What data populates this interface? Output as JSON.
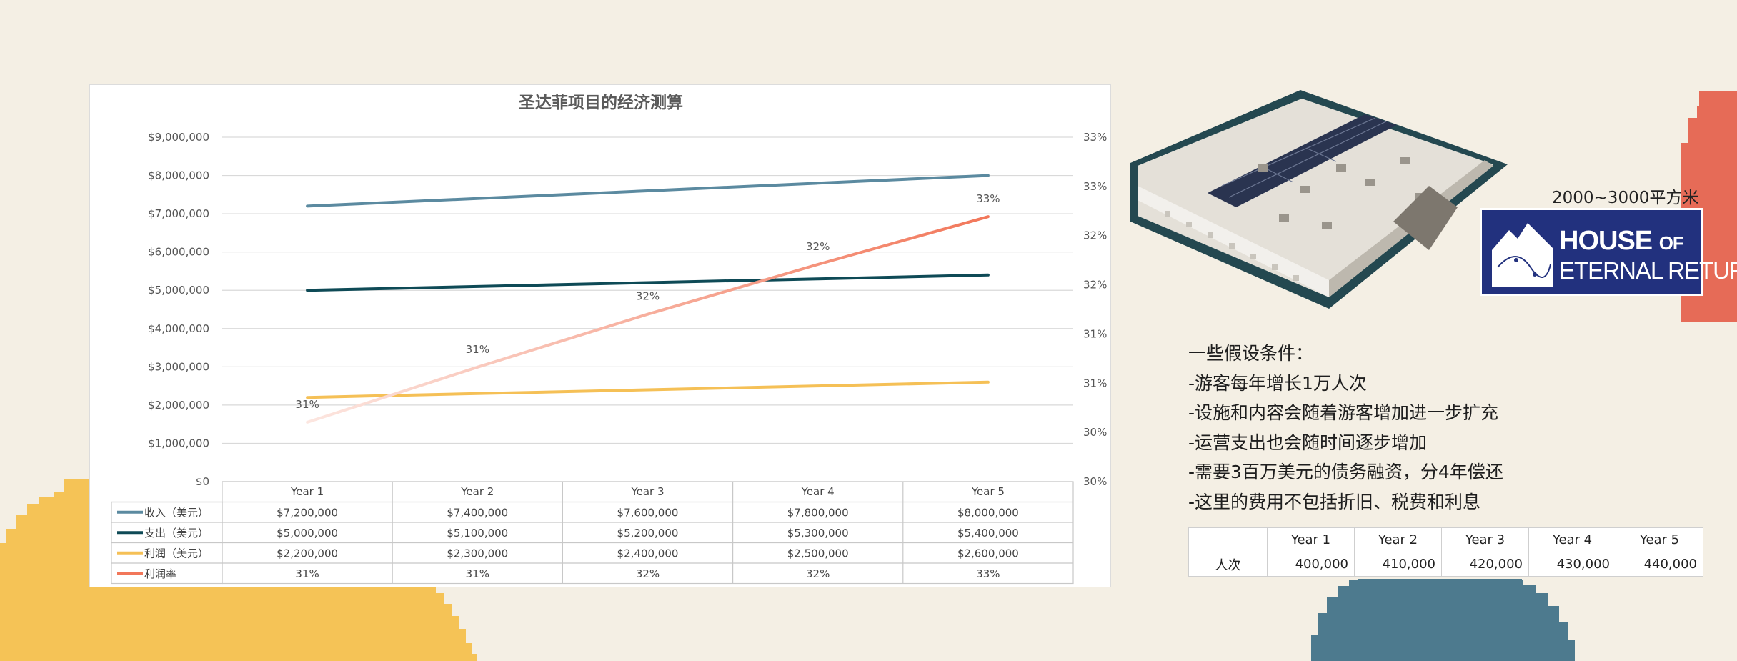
{
  "chart_data": {
    "type": "line",
    "title": "圣达菲项目的经济测算",
    "categories": [
      "Year 1",
      "Year 2",
      "Year 3",
      "Year 4",
      "Year 5"
    ],
    "left_axis": {
      "ylim": [
        0,
        9000000
      ],
      "tick_labels": [
        "$0",
        "$1,000,000",
        "$2,000,000",
        "$3,000,000",
        "$4,000,000",
        "$5,000,000",
        "$6,000,000",
        "$7,000,000",
        "$8,000,000",
        "$9,000,000"
      ]
    },
    "right_axis": {
      "tick_labels": [
        "30%",
        "30%",
        "31%",
        "31%",
        "32%",
        "32%",
        "33%",
        "33%"
      ]
    },
    "series": [
      {
        "name": "收入（美元）",
        "values": [
          7200000,
          7400000,
          7600000,
          7800000,
          8000000
        ],
        "labels": [
          "$7,200,000",
          "$7,400,000",
          "$7,600,000",
          "$7,800,000",
          "$8,000,000"
        ],
        "color": "#5b8aa0",
        "axis": "left"
      },
      {
        "name": "支出（美元）",
        "values": [
          5000000,
          5100000,
          5200000,
          5300000,
          5400000
        ],
        "labels": [
          "$5,000,000",
          "$5,100,000",
          "$5,200,000",
          "$5,300,000",
          "$5,400,000"
        ],
        "color": "#0e4a56",
        "axis": "left"
      },
      {
        "name": "利润（美元）",
        "values": [
          2200000,
          2300000,
          2400000,
          2500000,
          2600000
        ],
        "labels": [
          "$2,200,000",
          "$2,300,000",
          "$2,400,000",
          "$2,500,000",
          "$2,600,000"
        ],
        "color": "#f5c056",
        "axis": "left"
      },
      {
        "name": "利润率",
        "values": [
          0.3056,
          0.3108,
          0.3158,
          0.3205,
          0.325
        ],
        "labels": [
          "31%",
          "31%",
          "32%",
          "32%",
          "33%"
        ],
        "color": "#f2775a",
        "axis": "right"
      }
    ],
    "grid": true,
    "legend": "data-table"
  },
  "right_panel": {
    "area": "2000~3000平方米",
    "logo": {
      "line1_a": "HOUSE ",
      "line1_b": "OF",
      "line2": "ETERNAL RETURN"
    },
    "assumptions": [
      "一些假设条件：",
      "-游客每年增长1万人次",
      "-设施和内容会随着游客增加进一步扩充",
      "-运营支出也会随时间逐步增加",
      "-需要3百万美元的债务融资，分4年偿还",
      "-这里的费用不包括折旧、税费和利息"
    ],
    "visitor_table": {
      "headers": [
        "",
        "Year 1",
        "Year 2",
        "Year 3",
        "Year 4",
        "Year 5"
      ],
      "row_label": "人次",
      "values": [
        "400,000",
        "410,000",
        "420,000",
        "430,000",
        "440,000"
      ]
    }
  },
  "colors": {
    "background": "#f4efe4",
    "yellow": "#f5c356",
    "blue": "#4d7a8e",
    "coral": "#e66b57",
    "logo": "#22317e"
  }
}
